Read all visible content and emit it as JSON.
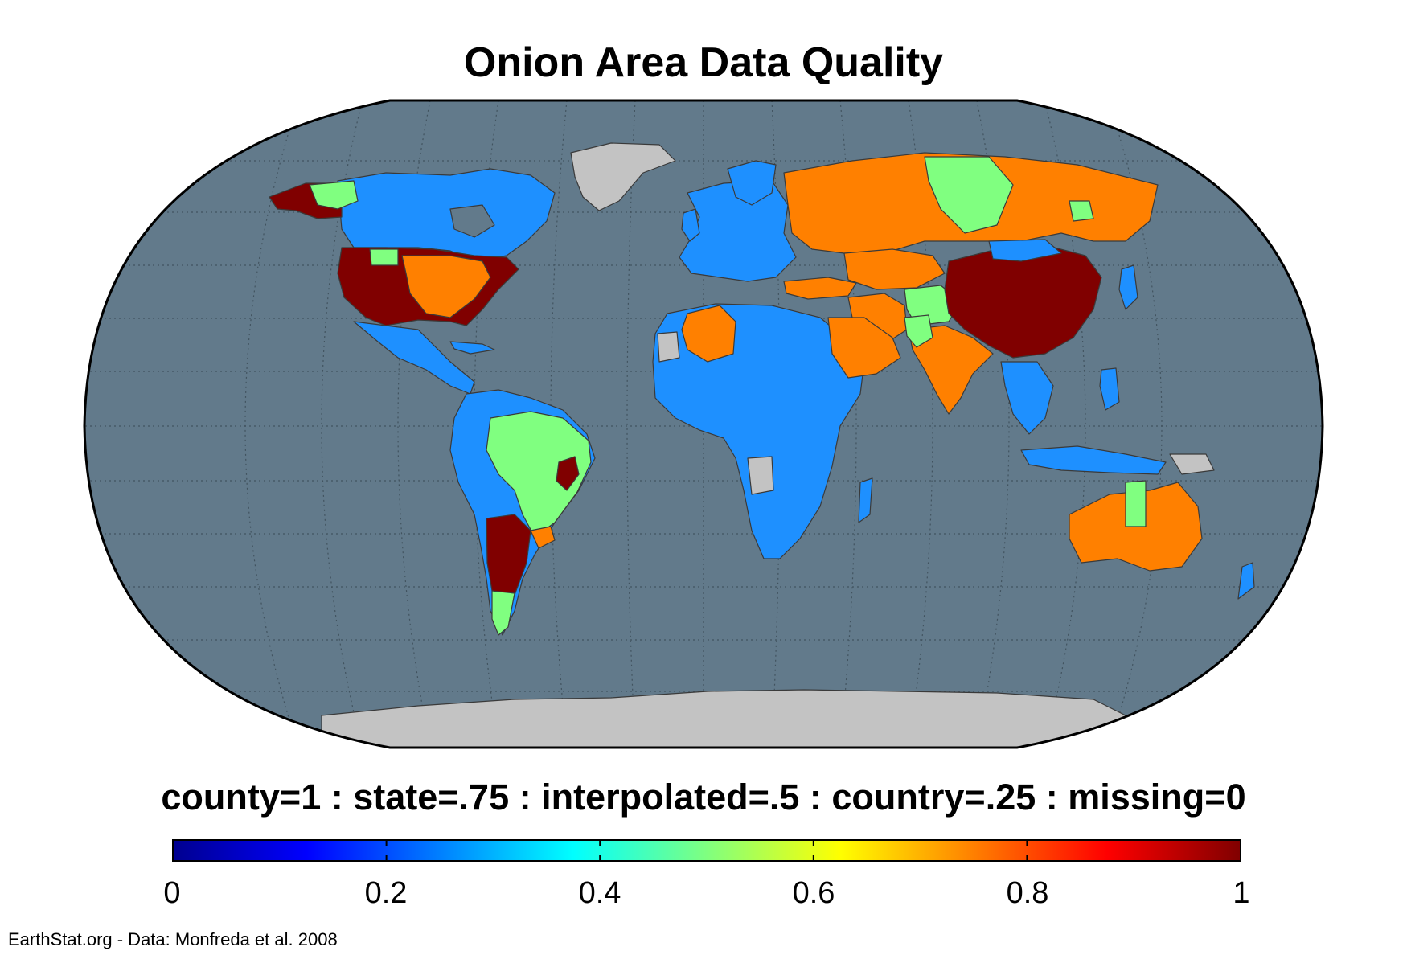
{
  "title": "Onion Area Data Quality",
  "legend_caption": "county=1 : state=.75 : interpolated=.5 : country=.25 : missing=0",
  "colorbar": {
    "colormap": "jet",
    "min": 0,
    "max": 1,
    "ticks": [
      0,
      0.2,
      0.4,
      0.6,
      0.8,
      1
    ],
    "tick_labels": [
      "0",
      "0.2",
      "0.4",
      "0.6",
      "0.8",
      "1"
    ]
  },
  "credit": "EarthStat.org - Data: Monfreda et al. 2008",
  "colors": {
    "ocean": "#627a8b",
    "missing_land": "#c3c3c3",
    "country": "#1e90ff",
    "interpolated": "#80ff80",
    "state": "#ff8000",
    "county": "#800000"
  },
  "map": {
    "projection": "Robinson",
    "regions": [
      {
        "name": "Alaska",
        "quality": 1
      },
      {
        "name": "Canada",
        "quality": 0.25
      },
      {
        "name": "Contiguous United States",
        "quality": 1
      },
      {
        "name": "Mexico",
        "quality": 0.25
      },
      {
        "name": "Brazil",
        "quality": 0.5
      },
      {
        "name": "Argentina",
        "quality": 1
      },
      {
        "name": "Uruguay",
        "quality": 0.75
      },
      {
        "name": "Algeria",
        "quality": 0.75
      },
      {
        "name": "Saudi Arabia",
        "quality": 0.75
      },
      {
        "name": "Turkey",
        "quality": 0.75
      },
      {
        "name": "Iran",
        "quality": 0.75
      },
      {
        "name": "Russia",
        "quality": 0.75
      },
      {
        "name": "Kazakhstan",
        "quality": 0.75
      },
      {
        "name": "India",
        "quality": 0.75
      },
      {
        "name": "China",
        "quality": 1
      },
      {
        "name": "Australia",
        "quality": 0.75
      },
      {
        "name": "Greenland",
        "quality": 0
      },
      {
        "name": "Antarctica",
        "quality": 0
      }
    ]
  }
}
